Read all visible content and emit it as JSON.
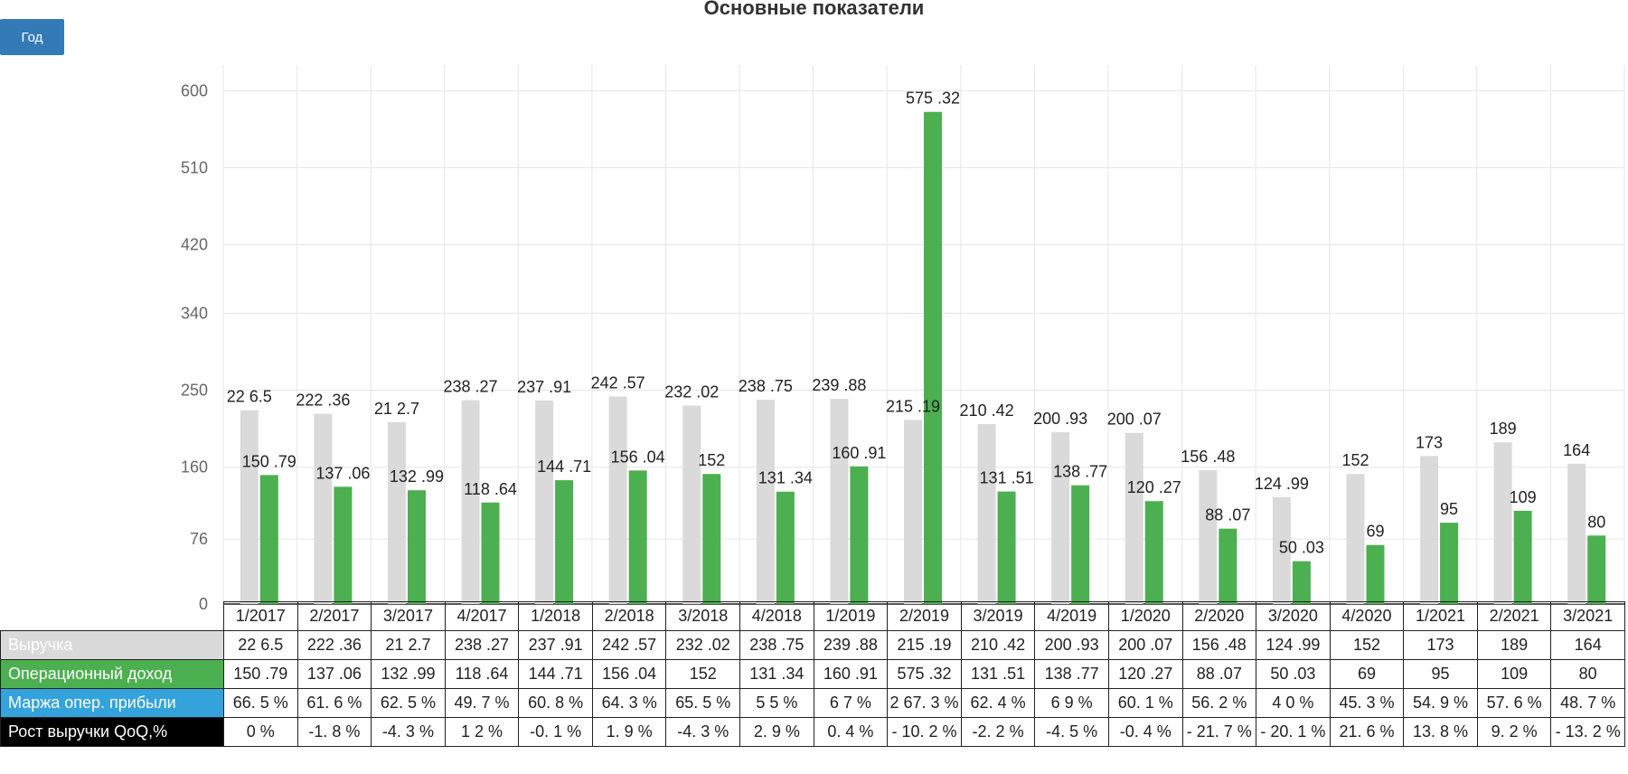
{
  "controls": {
    "period_label": "Год"
  },
  "colors": {
    "revenue": "#dadada",
    "op_income": "#4caf50",
    "margin_label_bg": "#34a3dc",
    "revenue_label_bg": "#dadada",
    "op_income_label_bg": "#4caf50",
    "growth_label_bg": "#000000"
  },
  "chart_data": {
    "type": "bar",
    "title": "Основные показатели",
    "categories": [
      "1/2017",
      "2/2017",
      "3/2017",
      "4/2017",
      "1/2018",
      "2/2018",
      "3/2018",
      "4/2018",
      "1/2019",
      "2/2019",
      "3/2019",
      "4/2019",
      "1/2020",
      "2/2020",
      "3/2020",
      "4/2020",
      "1/2021",
      "2/2021",
      "3/2021"
    ],
    "series": [
      {
        "name": "Выручка",
        "values": [
          226.5,
          222.36,
          212.7,
          238.27,
          237.91,
          242.57,
          232.02,
          238.75,
          239.88,
          215.19,
          210.42,
          200.93,
          200.07,
          156.48,
          124.99,
          152,
          173,
          189,
          164
        ],
        "labels": [
          "22 6.5",
          "222 .36",
          "21 2.7",
          "238 .27",
          "237 .91",
          "242 .57",
          "232 .02",
          "238 .75",
          "239 .88",
          "215 .19",
          "210 .42",
          "200 .93",
          "200 .07",
          "156 .48",
          "124 .99",
          "152",
          "173",
          "189",
          "164"
        ]
      },
      {
        "name": "Операционный доход",
        "values": [
          150.79,
          137.06,
          132.99,
          118.64,
          144.71,
          156.04,
          152,
          131.34,
          160.91,
          575.32,
          131.51,
          138.77,
          120.27,
          88.07,
          50.03,
          69,
          95,
          109,
          80
        ],
        "labels": [
          "150 .79",
          "137 .06",
          "132 .99",
          "118 .64",
          "144 .71",
          "156 .04",
          "152",
          "131 .34",
          "160 .91",
          "575 .32",
          "131 .51",
          "138 .77",
          "120 .27",
          "88 .07",
          "50 .03",
          "69",
          "95",
          "109",
          "80"
        ]
      }
    ],
    "yticks": [
      0,
      76,
      160,
      250,
      340,
      420,
      510,
      600
    ],
    "ylim": [
      0,
      630
    ],
    "grid": true,
    "xlabel": "",
    "ylabel": ""
  },
  "table": {
    "rows": [
      {
        "label": "Выручка",
        "cells": [
          "22 6.5",
          "222 .36",
          "21 2.7",
          "238 .27",
          "237 .91",
          "242 .57",
          "232 .02",
          "238 .75",
          "239 .88",
          "215 .19",
          "210 .42",
          "200 .93",
          "200 .07",
          "156 .48",
          "124 .99",
          "152",
          "173",
          "189",
          "164"
        ]
      },
      {
        "label": "Операционный доход",
        "cells": [
          "150 .79",
          "137 .06",
          "132 .99",
          "118 .64",
          "144 .71",
          "156 .04",
          "152",
          "131 .34",
          "160 .91",
          "575 .32",
          "131 .51",
          "138 .77",
          "120 .27",
          "88 .07",
          "50 .03",
          "69",
          "95",
          "109",
          "80"
        ]
      },
      {
        "label": "Маржа опер. прибыли",
        "cells": [
          "66. 5 %",
          "61. 6 %",
          "62. 5 %",
          "49. 7 %",
          "60. 8 %",
          "64. 3 %",
          "65. 5 %",
          "5 5 %",
          "6 7 %",
          "2 67. 3 %",
          "62. 4 %",
          "6 9 %",
          "60. 1 %",
          "56. 2 %",
          "4 0 %",
          "45. 3 %",
          "54. 9 %",
          "57. 6 %",
          "48. 7 %"
        ]
      },
      {
        "label": "Рост выручки QoQ,%",
        "cells": [
          "0 %",
          "-1. 8 %",
          "-4. 3 %",
          "1 2 %",
          "-0. 1 %",
          "1. 9 %",
          "-4. 3 %",
          "2. 9 %",
          "0. 4 %",
          "- 10. 2 %",
          "-2. 2 %",
          "-4. 5 %",
          "-0. 4 %",
          "- 21. 7 %",
          "- 20. 1 %",
          "21. 6 %",
          "13. 8 %",
          "9. 2 %",
          "- 13. 2 %"
        ]
      }
    ]
  }
}
